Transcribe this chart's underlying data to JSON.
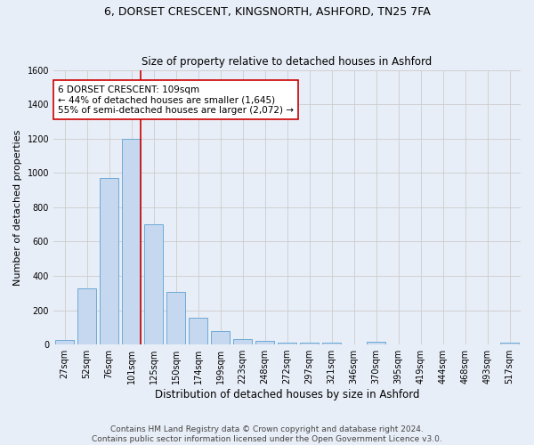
{
  "title": "6, DORSET CRESCENT, KINGSNORTH, ASHFORD, TN25 7FA",
  "subtitle": "Size of property relative to detached houses in Ashford",
  "xlabel": "Distribution of detached houses by size in Ashford",
  "ylabel": "Number of detached properties",
  "bar_labels": [
    "27sqm",
    "52sqm",
    "76sqm",
    "101sqm",
    "125sqm",
    "150sqm",
    "174sqm",
    "199sqm",
    "223sqm",
    "248sqm",
    "272sqm",
    "297sqm",
    "321sqm",
    "346sqm",
    "370sqm",
    "395sqm",
    "419sqm",
    "444sqm",
    "468sqm",
    "493sqm",
    "517sqm"
  ],
  "bar_values": [
    25,
    325,
    970,
    1200,
    700,
    305,
    155,
    80,
    30,
    20,
    10,
    10,
    10,
    0,
    15,
    0,
    0,
    0,
    0,
    0,
    10
  ],
  "bar_color": "#c5d8f0",
  "bar_edge_color": "#6daad6",
  "property_line_color": "#cc0000",
  "annotation_line1": "6 DORSET CRESCENT: 109sqm",
  "annotation_line2": "← 44% of detached houses are smaller (1,645)",
  "annotation_line3": "55% of semi-detached houses are larger (2,072) →",
  "annotation_box_color": "#ffffff",
  "annotation_box_edge": "#cc0000",
  "ylim": [
    0,
    1600
  ],
  "yticks": [
    0,
    200,
    400,
    600,
    800,
    1000,
    1200,
    1400,
    1600
  ],
  "grid_color": "#cccccc",
  "background_color": "#e8eef7",
  "footer_text": "Contains HM Land Registry data © Crown copyright and database right 2024.\nContains public sector information licensed under the Open Government Licence v3.0.",
  "title_fontsize": 9,
  "subtitle_fontsize": 8.5,
  "xlabel_fontsize": 8.5,
  "ylabel_fontsize": 8,
  "tick_fontsize": 7,
  "annotation_fontsize": 7.5,
  "footer_fontsize": 6.5
}
